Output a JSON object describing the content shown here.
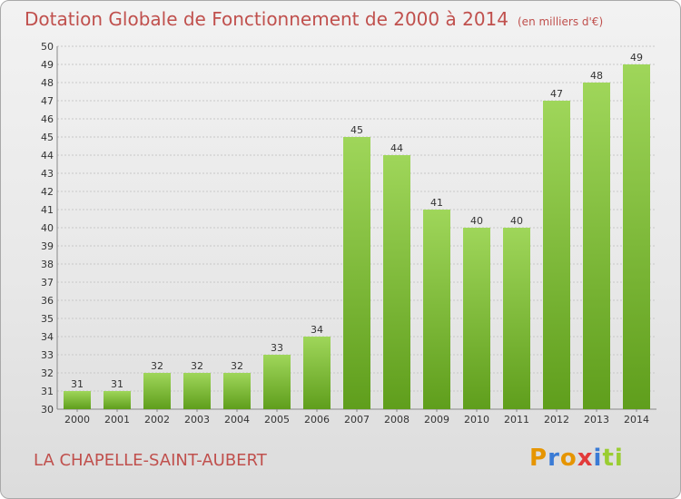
{
  "title": "Dotation Globale de Fonctionnement de 2000 à 2014",
  "subtitle": "(en milliers d'€)",
  "place": "LA CHAPELLE-SAINT-AUBERT",
  "logo": "Proxiti",
  "colors": {
    "title": "#c0504d",
    "bar_light": "#9fd65a",
    "bar_dark": "#5f9e1c",
    "logo_letters": [
      "#e69500",
      "#3a7bd5",
      "#e69500",
      "#e23a3a",
      "#3a7bd5",
      "#9acd32",
      "#9acd32"
    ]
  },
  "chart_data": {
    "type": "bar",
    "categories": [
      "2000",
      "2001",
      "2002",
      "2003",
      "2004",
      "2005",
      "2006",
      "2007",
      "2008",
      "2009",
      "2010",
      "2011",
      "2012",
      "2013",
      "2014"
    ],
    "values": [
      31,
      31,
      32,
      32,
      32,
      33,
      34,
      45,
      44,
      41,
      40,
      40,
      47,
      48,
      49
    ],
    "ylim": [
      30,
      50
    ],
    "yticks": [
      "30",
      "31",
      "32",
      "33",
      "34",
      "35",
      "36",
      "37",
      "38",
      "39",
      "40",
      "41",
      "42",
      "43",
      "44",
      "45",
      "46",
      "47",
      "48",
      "49",
      "50"
    ],
    "grid": true,
    "title": "Dotation Globale de Fonctionnement de 2000 à 2014",
    "xlabel": "",
    "ylabel": ""
  }
}
